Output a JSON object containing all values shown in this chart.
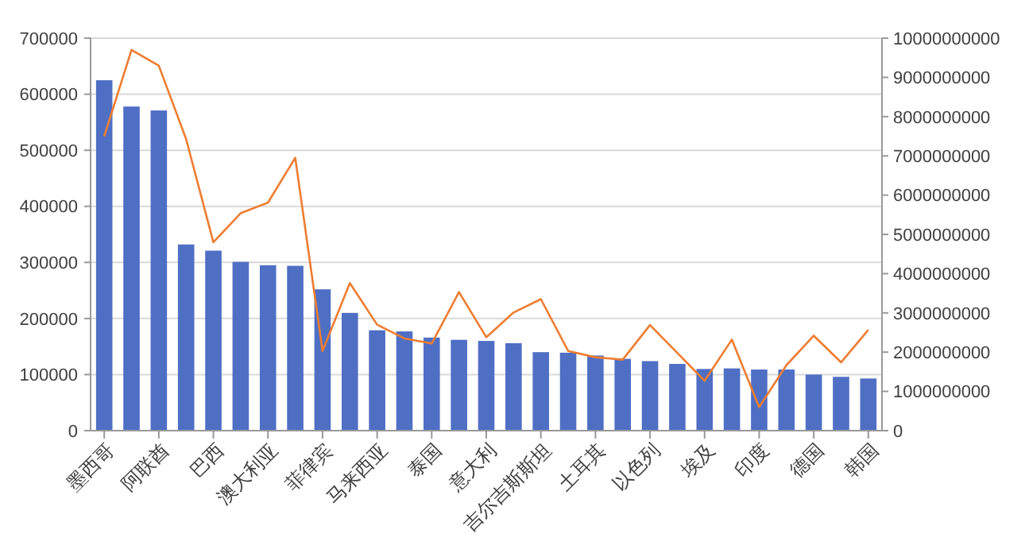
{
  "chart_data": {
    "type": "bar",
    "categories": [
      "墨西哥",
      null,
      "阿联酋",
      null,
      "巴西",
      null,
      "澳大利亚",
      null,
      "菲律宾",
      null,
      "马来西亚",
      null,
      "泰国",
      null,
      "意大利",
      null,
      "吉尔吉斯斯坦",
      null,
      "土耳其",
      null,
      "以色列",
      null,
      "埃及",
      null,
      "印度",
      null,
      "德国",
      null,
      "韩国"
    ],
    "series": [
      {
        "color": "#4f6fc5",
        "values": [
          625000,
          578000,
          571000,
          332000,
          321000,
          301000,
          295000,
          294000,
          252000,
          210000,
          179000,
          177000,
          166000,
          162000,
          160000,
          156000,
          140000,
          139000,
          134000,
          128000,
          124000,
          119000,
          110000,
          111000,
          109000,
          109000,
          100000,
          96000,
          93000
        ]
      },
      {
        "type": "line",
        "axis": "y2",
        "color": "#ed7d31",
        "values": [
          7500000000,
          9700000000,
          9300000000,
          7430000000,
          4800000000,
          5540000000,
          5810000000,
          6950000000,
          2030000000,
          3760000000,
          2700000000,
          2350000000,
          2220000000,
          3530000000,
          2380000000,
          3010000000,
          3350000000,
          2030000000,
          1870000000,
          1810000000,
          2690000000,
          1980000000,
          1270000000,
          2320000000,
          600000000,
          1670000000,
          2420000000,
          1740000000,
          2570000000
        ]
      }
    ],
    "ylim": [
      0,
      700000
    ],
    "yticks": [
      0,
      100000,
      200000,
      300000,
      400000,
      500000,
      600000,
      700000
    ],
    "y2lim": [
      0,
      10000000000
    ],
    "y2ticks": [
      0,
      1000000000,
      2000000000,
      3000000000,
      4000000000,
      5000000000,
      6000000000,
      7000000000,
      8000000000,
      9000000000,
      10000000000
    ],
    "grid": "y",
    "marker": "none",
    "line_style": "solid"
  }
}
